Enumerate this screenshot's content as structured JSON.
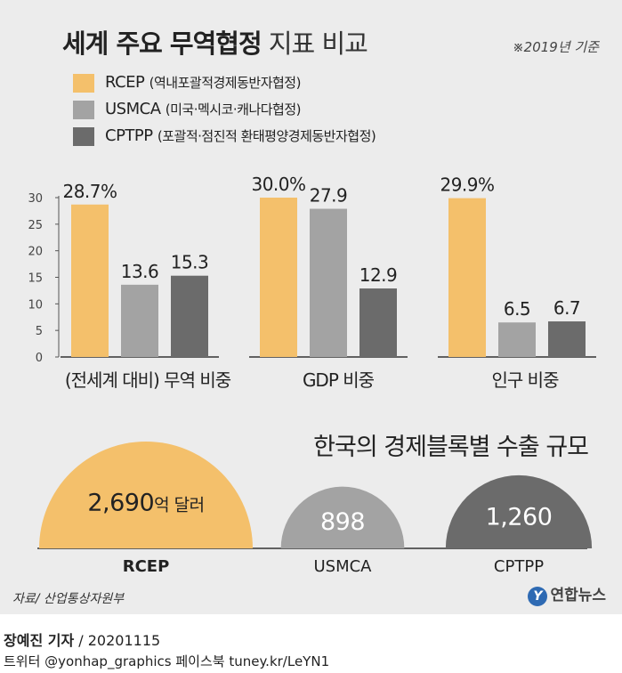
{
  "header": {
    "title_bold": "세계 주요 무역협정",
    "title_light": "지표 비교",
    "note": "※2019년 기준"
  },
  "legend": [
    {
      "name": "RCEP",
      "desc": "(역내포괄적경제동반자협정)",
      "color": "#f4c06b"
    },
    {
      "name": "USMCA",
      "desc": "(미국·멕시코·캐나다협정)",
      "color": "#a3a3a3"
    },
    {
      "name": "CPTPP",
      "desc": "(포괄적·점진적 환태평양경제동반자협정)",
      "color": "#6b6b6b"
    }
  ],
  "chart_data": [
    {
      "type": "bar",
      "title": "(전세계 대비) 무역 비중",
      "categories": [
        "RCEP",
        "USMCA",
        "CPTPP"
      ],
      "values": [
        28.7,
        13.6,
        15.3
      ],
      "labels": [
        "28.7%",
        "13.6",
        "15.3"
      ],
      "ylim": [
        0,
        30
      ],
      "yticks": [
        "0",
        "5",
        "10",
        "15",
        "20",
        "25",
        "30"
      ]
    },
    {
      "type": "bar",
      "title": "GDP 비중",
      "categories": [
        "RCEP",
        "USMCA",
        "CPTPP"
      ],
      "values": [
        30.0,
        27.9,
        12.9
      ],
      "labels": [
        "30.0%",
        "27.9",
        "12.9"
      ],
      "ylim": [
        0,
        30
      ]
    },
    {
      "type": "bar",
      "title": "인구 비중",
      "categories": [
        "RCEP",
        "USMCA",
        "CPTPP"
      ],
      "values": [
        29.9,
        6.5,
        6.7
      ],
      "labels": [
        "29.9%",
        "6.5",
        "6.7"
      ],
      "ylim": [
        0,
        30
      ]
    },
    {
      "type": "bar",
      "title": "한국의 경제블록별 수출 규모",
      "categories": [
        "RCEP",
        "USMCA",
        "CPTPP"
      ],
      "values": [
        2690,
        898,
        1260
      ],
      "labels": [
        "2,690",
        "898",
        "1,260"
      ],
      "unit": "억 달러"
    }
  ],
  "footer": {
    "source": "자료/ 산업통상자원부",
    "logo": "연합뉴스",
    "logo_mark": "Y",
    "author": "장예진 기자",
    "date": "/ 20201115",
    "social": "트위터 @yonhap_graphics  페이스북 tuney.kr/LeYN1"
  }
}
